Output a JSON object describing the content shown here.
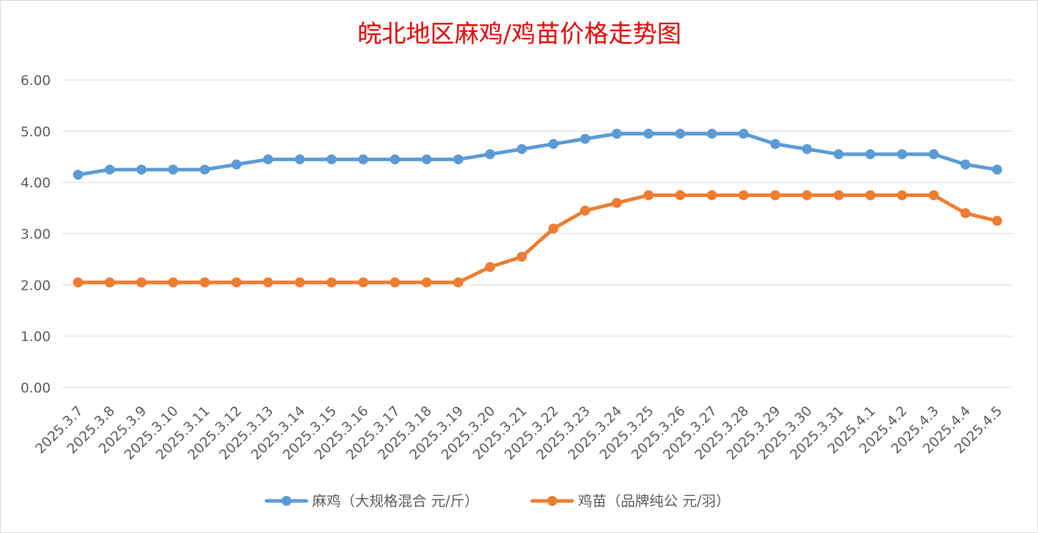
{
  "chart_data": {
    "type": "line",
    "title": "皖北地区麻鸡/鸡苗价格走势图",
    "xlabel": "",
    "ylabel": "",
    "ylim": [
      0,
      6
    ],
    "yticks": [
      "0.00",
      "1.00",
      "2.00",
      "3.00",
      "4.00",
      "5.00",
      "6.00"
    ],
    "grid": true,
    "legend_position": "bottom",
    "categories": [
      "2025.3.7",
      "2025.3.8",
      "2025.3.9",
      "2025.3.10",
      "2025.3.11",
      "2025.3.12",
      "2025.3.13",
      "2025.3.14",
      "2025.3.15",
      "2025.3.16",
      "2025.3.17",
      "2025.3.18",
      "2025.3.19",
      "2025.3.20",
      "2025.3.21",
      "2025.3.22",
      "2025.3.23",
      "2025.3.24",
      "2025.3.25",
      "2025.3.26",
      "2025.3.27",
      "2025.3.28",
      "2025.3.29",
      "2025.3.30",
      "2025.3.31",
      "2025.4.1",
      "2025.4.2",
      "2025.4.3",
      "2025.4.4",
      "2025.4.5"
    ],
    "series": [
      {
        "name": "麻鸡（大规格混合 元/斤）",
        "color": "#5b9bd5",
        "values": [
          4.15,
          4.25,
          4.25,
          4.25,
          4.25,
          4.35,
          4.45,
          4.45,
          4.45,
          4.45,
          4.45,
          4.45,
          4.45,
          4.55,
          4.65,
          4.75,
          4.85,
          4.95,
          4.95,
          4.95,
          4.95,
          4.95,
          4.75,
          4.65,
          4.55,
          4.55,
          4.55,
          4.55,
          4.35,
          4.25
        ]
      },
      {
        "name": "鸡苗（品牌纯公 元/羽）",
        "color": "#ed7d31",
        "values": [
          2.05,
          2.05,
          2.05,
          2.05,
          2.05,
          2.05,
          2.05,
          2.05,
          2.05,
          2.05,
          2.05,
          2.05,
          2.05,
          2.35,
          2.55,
          3.1,
          3.45,
          3.6,
          3.75,
          3.75,
          3.75,
          3.75,
          3.75,
          3.75,
          3.75,
          3.75,
          3.75,
          3.75,
          3.4,
          3.25
        ]
      }
    ]
  }
}
